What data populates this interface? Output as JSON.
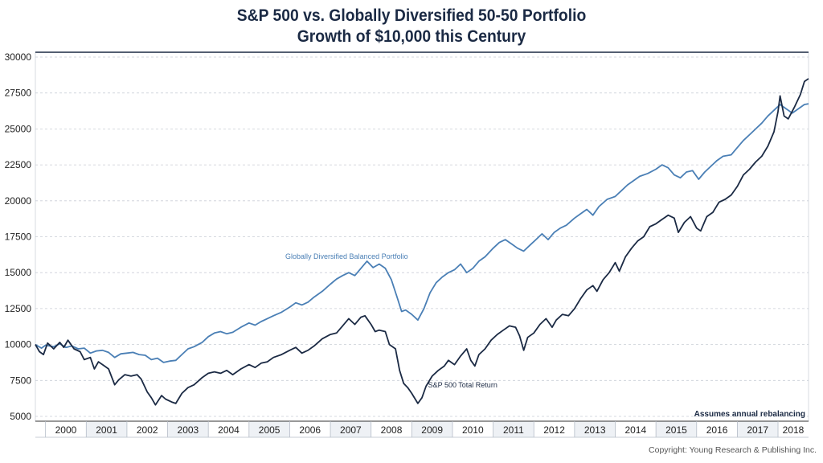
{
  "chart_data": {
    "type": "line",
    "title": "S&P 500 vs. Globally Diversified 50-50 Portfolio",
    "subtitle": "Growth of $10,000 this Century",
    "ylim": [
      5000,
      30000
    ],
    "yticks": [
      5000,
      7500,
      10000,
      12500,
      15000,
      17500,
      20000,
      22500,
      25000,
      27500,
      30000
    ],
    "xlim": [
      1999.75,
      2018.75
    ],
    "xticks": [
      "2000",
      "2001",
      "2002",
      "2003",
      "2004",
      "2005",
      "2006",
      "2007",
      "2008",
      "2009",
      "2010",
      "2011",
      "2012",
      "2013",
      "2014",
      "2015",
      "2016",
      "2017",
      "2018"
    ],
    "grid": "horizontal dashed",
    "series": [
      {
        "name": "Globally Diversified Balanced Portfolio",
        "color": "#4a7fb5",
        "points": [
          [
            1999.75,
            10000
          ],
          [
            1999.9,
            9750
          ],
          [
            2000.0,
            9950
          ],
          [
            2000.2,
            9850
          ],
          [
            2000.35,
            10050
          ],
          [
            2000.5,
            9800
          ],
          [
            2000.65,
            9900
          ],
          [
            2000.8,
            9700
          ],
          [
            2000.95,
            9750
          ],
          [
            2001.1,
            9400
          ],
          [
            2001.25,
            9550
          ],
          [
            2001.4,
            9600
          ],
          [
            2001.55,
            9450
          ],
          [
            2001.7,
            9100
          ],
          [
            2001.85,
            9350
          ],
          [
            2002.0,
            9400
          ],
          [
            2002.15,
            9450
          ],
          [
            2002.3,
            9300
          ],
          [
            2002.45,
            9250
          ],
          [
            2002.6,
            8950
          ],
          [
            2002.75,
            9050
          ],
          [
            2002.9,
            8750
          ],
          [
            2003.05,
            8850
          ],
          [
            2003.2,
            8900
          ],
          [
            2003.35,
            9300
          ],
          [
            2003.5,
            9700
          ],
          [
            2003.65,
            9850
          ],
          [
            2003.85,
            10150
          ],
          [
            2004.0,
            10550
          ],
          [
            2004.15,
            10800
          ],
          [
            2004.3,
            10900
          ],
          [
            2004.45,
            10750
          ],
          [
            2004.6,
            10850
          ],
          [
            2004.8,
            11200
          ],
          [
            2005.0,
            11500
          ],
          [
            2005.15,
            11350
          ],
          [
            2005.3,
            11600
          ],
          [
            2005.45,
            11800
          ],
          [
            2005.6,
            12000
          ],
          [
            2005.8,
            12250
          ],
          [
            2006.0,
            12600
          ],
          [
            2006.15,
            12900
          ],
          [
            2006.3,
            12750
          ],
          [
            2006.45,
            12950
          ],
          [
            2006.6,
            13300
          ],
          [
            2006.8,
            13700
          ],
          [
            2007.0,
            14200
          ],
          [
            2007.15,
            14550
          ],
          [
            2007.3,
            14800
          ],
          [
            2007.45,
            15000
          ],
          [
            2007.6,
            14800
          ],
          [
            2007.75,
            15300
          ],
          [
            2007.9,
            15800
          ],
          [
            2008.05,
            15350
          ],
          [
            2008.2,
            15600
          ],
          [
            2008.35,
            15300
          ],
          [
            2008.5,
            14500
          ],
          [
            2008.65,
            13200
          ],
          [
            2008.75,
            12300
          ],
          [
            2008.85,
            12400
          ],
          [
            2009.0,
            12100
          ],
          [
            2009.15,
            11700
          ],
          [
            2009.3,
            12500
          ],
          [
            2009.45,
            13600
          ],
          [
            2009.6,
            14300
          ],
          [
            2009.75,
            14700
          ],
          [
            2009.9,
            15000
          ],
          [
            2010.05,
            15200
          ],
          [
            2010.2,
            15600
          ],
          [
            2010.35,
            15000
          ],
          [
            2010.5,
            15300
          ],
          [
            2010.65,
            15800
          ],
          [
            2010.8,
            16100
          ],
          [
            2011.0,
            16700
          ],
          [
            2011.15,
            17100
          ],
          [
            2011.3,
            17300
          ],
          [
            2011.45,
            17000
          ],
          [
            2011.6,
            16700
          ],
          [
            2011.75,
            16500
          ],
          [
            2011.9,
            16900
          ],
          [
            2012.05,
            17300
          ],
          [
            2012.2,
            17700
          ],
          [
            2012.35,
            17300
          ],
          [
            2012.5,
            17800
          ],
          [
            2012.65,
            18100
          ],
          [
            2012.8,
            18300
          ],
          [
            2013.0,
            18800
          ],
          [
            2013.15,
            19100
          ],
          [
            2013.3,
            19400
          ],
          [
            2013.45,
            19000
          ],
          [
            2013.6,
            19600
          ],
          [
            2013.8,
            20100
          ],
          [
            2014.0,
            20300
          ],
          [
            2014.15,
            20700
          ],
          [
            2014.3,
            21100
          ],
          [
            2014.45,
            21400
          ],
          [
            2014.6,
            21700
          ],
          [
            2014.8,
            21900
          ],
          [
            2015.0,
            22200
          ],
          [
            2015.15,
            22500
          ],
          [
            2015.3,
            22300
          ],
          [
            2015.45,
            21800
          ],
          [
            2015.6,
            21600
          ],
          [
            2015.75,
            22000
          ],
          [
            2015.9,
            22100
          ],
          [
            2016.05,
            21500
          ],
          [
            2016.2,
            22000
          ],
          [
            2016.35,
            22400
          ],
          [
            2016.5,
            22800
          ],
          [
            2016.65,
            23100
          ],
          [
            2016.85,
            23200
          ],
          [
            2017.0,
            23700
          ],
          [
            2017.15,
            24200
          ],
          [
            2017.3,
            24600
          ],
          [
            2017.45,
            25000
          ],
          [
            2017.6,
            25400
          ],
          [
            2017.75,
            25900
          ],
          [
            2017.9,
            26300
          ],
          [
            2018.05,
            26700
          ],
          [
            2018.2,
            26400
          ],
          [
            2018.35,
            26100
          ],
          [
            2018.5,
            26400
          ],
          [
            2018.65,
            26700
          ],
          [
            2018.75,
            26750
          ]
        ]
      },
      {
        "name": "S&P 500 Total Return",
        "color": "#1b2a44",
        "points": [
          [
            1999.75,
            10000
          ],
          [
            1999.85,
            9500
          ],
          [
            1999.95,
            9300
          ],
          [
            2000.05,
            10100
          ],
          [
            2000.2,
            9700
          ],
          [
            2000.35,
            10150
          ],
          [
            2000.45,
            9800
          ],
          [
            2000.55,
            10300
          ],
          [
            2000.7,
            9700
          ],
          [
            2000.85,
            9500
          ],
          [
            2000.95,
            8950
          ],
          [
            2001.1,
            9100
          ],
          [
            2001.2,
            8300
          ],
          [
            2001.3,
            8800
          ],
          [
            2001.45,
            8500
          ],
          [
            2001.55,
            8300
          ],
          [
            2001.7,
            7200
          ],
          [
            2001.8,
            7550
          ],
          [
            2001.95,
            7900
          ],
          [
            2002.1,
            7800
          ],
          [
            2002.25,
            7900
          ],
          [
            2002.35,
            7600
          ],
          [
            2002.5,
            6700
          ],
          [
            2002.6,
            6300
          ],
          [
            2002.7,
            5800
          ],
          [
            2002.85,
            6450
          ],
          [
            2002.95,
            6200
          ],
          [
            2003.1,
            6000
          ],
          [
            2003.2,
            5900
          ],
          [
            2003.35,
            6600
          ],
          [
            2003.5,
            7000
          ],
          [
            2003.65,
            7200
          ],
          [
            2003.85,
            7700
          ],
          [
            2004.0,
            8000
          ],
          [
            2004.15,
            8100
          ],
          [
            2004.3,
            8000
          ],
          [
            2004.45,
            8200
          ],
          [
            2004.6,
            7900
          ],
          [
            2004.8,
            8300
          ],
          [
            2005.0,
            8600
          ],
          [
            2005.15,
            8400
          ],
          [
            2005.3,
            8700
          ],
          [
            2005.45,
            8800
          ],
          [
            2005.6,
            9100
          ],
          [
            2005.8,
            9300
          ],
          [
            2006.0,
            9600
          ],
          [
            2006.15,
            9800
          ],
          [
            2006.3,
            9400
          ],
          [
            2006.45,
            9600
          ],
          [
            2006.6,
            9900
          ],
          [
            2006.8,
            10400
          ],
          [
            2007.0,
            10700
          ],
          [
            2007.15,
            10800
          ],
          [
            2007.3,
            11300
          ],
          [
            2007.45,
            11800
          ],
          [
            2007.6,
            11400
          ],
          [
            2007.75,
            11900
          ],
          [
            2007.85,
            12000
          ],
          [
            2008.0,
            11400
          ],
          [
            2008.1,
            10900
          ],
          [
            2008.2,
            11000
          ],
          [
            2008.35,
            10900
          ],
          [
            2008.45,
            10000
          ],
          [
            2008.6,
            9700
          ],
          [
            2008.7,
            8200
          ],
          [
            2008.8,
            7300
          ],
          [
            2008.9,
            7000
          ],
          [
            2009.0,
            6600
          ],
          [
            2009.15,
            5900
          ],
          [
            2009.25,
            6300
          ],
          [
            2009.35,
            7100
          ],
          [
            2009.5,
            7800
          ],
          [
            2009.65,
            8200
          ],
          [
            2009.8,
            8500
          ],
          [
            2009.9,
            8900
          ],
          [
            2010.05,
            8600
          ],
          [
            2010.2,
            9200
          ],
          [
            2010.35,
            9700
          ],
          [
            2010.45,
            8900
          ],
          [
            2010.55,
            8500
          ],
          [
            2010.65,
            9300
          ],
          [
            2010.8,
            9700
          ],
          [
            2010.95,
            10300
          ],
          [
            2011.1,
            10700
          ],
          [
            2011.25,
            11000
          ],
          [
            2011.4,
            11300
          ],
          [
            2011.55,
            11200
          ],
          [
            2011.65,
            10600
          ],
          [
            2011.75,
            9600
          ],
          [
            2011.85,
            10500
          ],
          [
            2012.0,
            10800
          ],
          [
            2012.15,
            11400
          ],
          [
            2012.3,
            11800
          ],
          [
            2012.45,
            11200
          ],
          [
            2012.55,
            11700
          ],
          [
            2012.7,
            12100
          ],
          [
            2012.85,
            12000
          ],
          [
            2013.0,
            12500
          ],
          [
            2013.15,
            13200
          ],
          [
            2013.3,
            13800
          ],
          [
            2013.45,
            14100
          ],
          [
            2013.55,
            13700
          ],
          [
            2013.7,
            14500
          ],
          [
            2013.85,
            15000
          ],
          [
            2014.0,
            15700
          ],
          [
            2014.1,
            15100
          ],
          [
            2014.25,
            16100
          ],
          [
            2014.4,
            16700
          ],
          [
            2014.55,
            17200
          ],
          [
            2014.7,
            17500
          ],
          [
            2014.85,
            18200
          ],
          [
            2015.0,
            18400
          ],
          [
            2015.15,
            18700
          ],
          [
            2015.3,
            19000
          ],
          [
            2015.45,
            18800
          ],
          [
            2015.55,
            17800
          ],
          [
            2015.7,
            18500
          ],
          [
            2015.85,
            18900
          ],
          [
            2016.0,
            18100
          ],
          [
            2016.1,
            17900
          ],
          [
            2016.25,
            18900
          ],
          [
            2016.4,
            19200
          ],
          [
            2016.55,
            19900
          ],
          [
            2016.7,
            20100
          ],
          [
            2016.85,
            20400
          ],
          [
            2017.0,
            21000
          ],
          [
            2017.15,
            21800
          ],
          [
            2017.3,
            22200
          ],
          [
            2017.45,
            22700
          ],
          [
            2017.6,
            23100
          ],
          [
            2017.75,
            23800
          ],
          [
            2017.9,
            24800
          ],
          [
            2018.0,
            26200
          ],
          [
            2018.05,
            27300
          ],
          [
            2018.15,
            25900
          ],
          [
            2018.25,
            25700
          ],
          [
            2018.4,
            26500
          ],
          [
            2018.55,
            27400
          ],
          [
            2018.65,
            28300
          ],
          [
            2018.75,
            28500
          ]
        ]
      }
    ],
    "annotations": {
      "note": "Assumes annual rebalancing",
      "copyright": "Copyright: Young Research & Publishing Inc."
    }
  }
}
